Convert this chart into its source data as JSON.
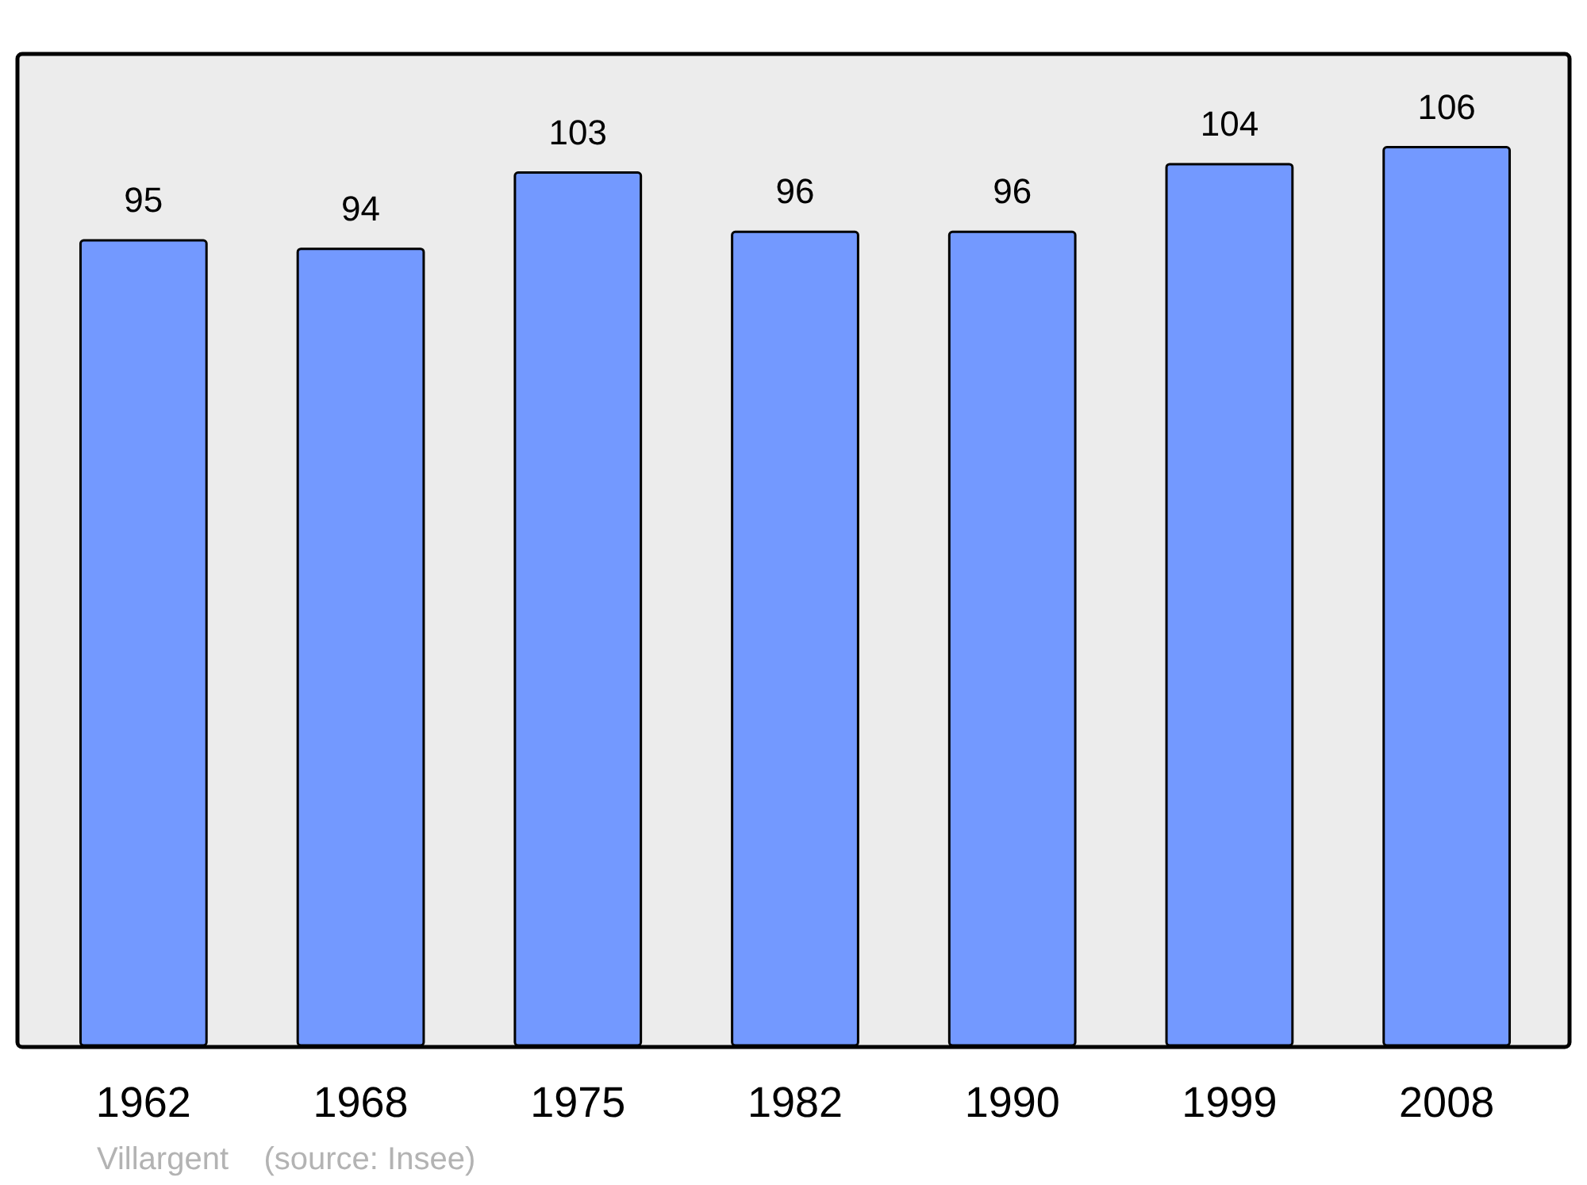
{
  "chart_data": {
    "type": "bar",
    "categories": [
      "1962",
      "1968",
      "1975",
      "1982",
      "1990",
      "1999",
      "2008"
    ],
    "values": [
      95,
      94,
      103,
      96,
      96,
      104,
      106
    ],
    "color": "#7399ff",
    "ylim": [
      0,
      117
    ],
    "data_labels": true,
    "annotations": [
      "Villargent    (source: Insee)"
    ]
  }
}
